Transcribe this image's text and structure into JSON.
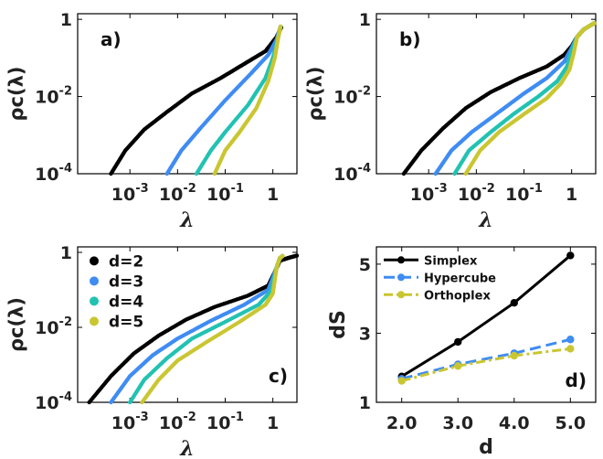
{
  "colors": {
    "d2": "#000000",
    "d3": "#3f8cf2",
    "d4": "#22c2b2",
    "d5": "#c9c632",
    "simplex": "#000000",
    "hypercube": "#3f8cf2",
    "orthoplex": "#c9c632"
  },
  "chart_data": [
    {
      "type": "scatter",
      "panel_label": "a)",
      "xscale": "log",
      "yscale": "log",
      "xlim": [
        8e-05,
        3.2
      ],
      "ylim": [
        0.0001,
        1.4
      ],
      "xticks": [
        {
          "v": 0.001,
          "b": "10",
          "e": "-3"
        },
        {
          "v": 0.01,
          "b": "10",
          "e": "-2"
        },
        {
          "v": 0.1,
          "b": "10",
          "e": "-1"
        },
        {
          "v": 1,
          "b": "1",
          "e": ""
        }
      ],
      "yticks": [
        {
          "v": 0.0001,
          "b": "10",
          "e": "-4"
        },
        {
          "v": 0.01,
          "b": "10",
          "e": "-2"
        },
        {
          "v": 1,
          "b": "1",
          "e": ""
        }
      ],
      "xlabel": "λ",
      "ylabel": "ρc(λ)",
      "series": [
        {
          "color": "#000000",
          "points": [
            [
              0.0004,
              0.0001
            ],
            [
              0.0008,
              0.0004
            ],
            [
              0.002,
              0.0014
            ],
            [
              0.006,
              0.004
            ],
            [
              0.02,
              0.012
            ],
            [
              0.08,
              0.03
            ],
            [
              0.25,
              0.07
            ],
            [
              0.7,
              0.15
            ],
            [
              1.2,
              0.35
            ],
            [
              1.5,
              0.62
            ]
          ]
        },
        {
          "color": "#3f8cf2",
          "points": [
            [
              0.006,
              0.0001
            ],
            [
              0.012,
              0.0004
            ],
            [
              0.03,
              0.0015
            ],
            [
              0.1,
              0.008
            ],
            [
              0.35,
              0.04
            ],
            [
              0.8,
              0.12
            ],
            [
              1.2,
              0.3
            ],
            [
              1.45,
              0.65
            ]
          ]
        },
        {
          "color": "#22c2b2",
          "points": [
            [
              0.025,
              0.0001
            ],
            [
              0.05,
              0.0004
            ],
            [
              0.1,
              0.0012
            ],
            [
              0.3,
              0.006
            ],
            [
              0.7,
              0.03
            ],
            [
              1.0,
              0.1
            ],
            [
              1.3,
              0.35
            ],
            [
              1.45,
              0.65
            ]
          ]
        },
        {
          "color": "#c9c632",
          "points": [
            [
              0.06,
              0.0001
            ],
            [
              0.1,
              0.0004
            ],
            [
              0.2,
              0.0012
            ],
            [
              0.45,
              0.005
            ],
            [
              0.8,
              0.025
            ],
            [
              1.1,
              0.1
            ],
            [
              1.3,
              0.35
            ],
            [
              1.45,
              0.65
            ]
          ]
        }
      ]
    },
    {
      "type": "scatter",
      "panel_label": "b)",
      "xscale": "log",
      "yscale": "log",
      "xlim": [
        8e-05,
        3.2
      ],
      "ylim": [
        0.0001,
        1.4
      ],
      "xticks": [
        {
          "v": 0.001,
          "b": "10",
          "e": "-3"
        },
        {
          "v": 0.01,
          "b": "10",
          "e": "-2"
        },
        {
          "v": 0.1,
          "b": "10",
          "e": "-1"
        },
        {
          "v": 1,
          "b": "1",
          "e": ""
        }
      ],
      "yticks": [
        {
          "v": 0.0001,
          "b": "10",
          "e": "-4"
        },
        {
          "v": 0.01,
          "b": "10",
          "e": "-2"
        },
        {
          "v": 1,
          "b": "1",
          "e": ""
        }
      ],
      "xlabel": "λ",
      "ylabel": "ρc(λ)",
      "series": [
        {
          "color": "#000000",
          "points": [
            [
              0.0003,
              0.0001
            ],
            [
              0.0007,
              0.0004
            ],
            [
              0.002,
              0.0015
            ],
            [
              0.006,
              0.005
            ],
            [
              0.02,
              0.013
            ],
            [
              0.08,
              0.03
            ],
            [
              0.3,
              0.06
            ],
            [
              0.7,
              0.12
            ],
            [
              1.0,
              0.2
            ],
            [
              1.3,
              0.35
            ],
            [
              1.8,
              0.55
            ],
            [
              2.5,
              0.7
            ],
            [
              3.0,
              0.8
            ]
          ]
        },
        {
          "color": "#3f8cf2",
          "points": [
            [
              0.0014,
              0.0001
            ],
            [
              0.003,
              0.0004
            ],
            [
              0.008,
              0.0012
            ],
            [
              0.03,
              0.004
            ],
            [
              0.1,
              0.012
            ],
            [
              0.3,
              0.03
            ],
            [
              0.7,
              0.08
            ],
            [
              1.0,
              0.18
            ],
            [
              1.3,
              0.35
            ],
            [
              1.8,
              0.55
            ],
            [
              2.5,
              0.7
            ],
            [
              3.0,
              0.8
            ]
          ]
        },
        {
          "color": "#22c2b2",
          "points": [
            [
              0.0035,
              0.0001
            ],
            [
              0.007,
              0.0004
            ],
            [
              0.02,
              0.0012
            ],
            [
              0.06,
              0.0035
            ],
            [
              0.2,
              0.01
            ],
            [
              0.5,
              0.025
            ],
            [
              0.8,
              0.06
            ],
            [
              1.0,
              0.15
            ],
            [
              1.3,
              0.35
            ],
            [
              1.8,
              0.55
            ],
            [
              2.5,
              0.7
            ],
            [
              3.0,
              0.8
            ]
          ]
        },
        {
          "color": "#c9c632",
          "points": [
            [
              0.006,
              0.0001
            ],
            [
              0.012,
              0.0004
            ],
            [
              0.03,
              0.0012
            ],
            [
              0.1,
              0.0035
            ],
            [
              0.3,
              0.009
            ],
            [
              0.6,
              0.022
            ],
            [
              0.9,
              0.05
            ],
            [
              1.1,
              0.13
            ],
            [
              1.3,
              0.35
            ],
            [
              1.8,
              0.55
            ],
            [
              2.5,
              0.7
            ],
            [
              3.0,
              0.8
            ]
          ]
        }
      ]
    },
    {
      "type": "scatter",
      "panel_label": "c)",
      "xscale": "log",
      "yscale": "log",
      "xlim": [
        8e-05,
        3.2
      ],
      "ylim": [
        0.0001,
        1.4
      ],
      "xticks": [
        {
          "v": 0.001,
          "b": "10",
          "e": "-3"
        },
        {
          "v": 0.01,
          "b": "10",
          "e": "-2"
        },
        {
          "v": 0.1,
          "b": "10",
          "e": "-1"
        },
        {
          "v": 1,
          "b": "1",
          "e": ""
        }
      ],
      "yticks": [
        {
          "v": 0.0001,
          "b": "10",
          "e": "-4"
        },
        {
          "v": 0.01,
          "b": "10",
          "e": "-2"
        },
        {
          "v": 1,
          "b": "1",
          "e": ""
        }
      ],
      "xlabel": "λ",
      "ylabel": "ρc(λ)",
      "legend": {
        "position": "top-left",
        "entries": [
          {
            "label": "d=2",
            "color": "#000000"
          },
          {
            "label": "d=3",
            "color": "#3f8cf2"
          },
          {
            "label": "d=4",
            "color": "#22c2b2"
          },
          {
            "label": "d=5",
            "color": "#c9c632"
          }
        ]
      },
      "series": [
        {
          "color": "#000000",
          "points": [
            [
              0.00014,
              0.0001
            ],
            [
              0.0004,
              0.0005
            ],
            [
              0.0012,
              0.002
            ],
            [
              0.004,
              0.006
            ],
            [
              0.015,
              0.016
            ],
            [
              0.06,
              0.035
            ],
            [
              0.3,
              0.07
            ],
            [
              0.8,
              0.13
            ],
            [
              1.1,
              0.3
            ],
            [
              1.4,
              0.6
            ],
            [
              2.2,
              0.72
            ],
            [
              3.2,
              0.82
            ]
          ]
        },
        {
          "color": "#3f8cf2",
          "points": [
            [
              0.0004,
              0.0001
            ],
            [
              0.001,
              0.0005
            ],
            [
              0.003,
              0.0018
            ],
            [
              0.01,
              0.005
            ],
            [
              0.05,
              0.015
            ],
            [
              0.25,
              0.04
            ],
            [
              0.8,
              0.1
            ],
            [
              1.2,
              0.4
            ],
            [
              1.4,
              0.7
            ],
            [
              1.6,
              0.8
            ]
          ]
        },
        {
          "color": "#22c2b2",
          "points": [
            [
              0.001,
              0.0001
            ],
            [
              0.002,
              0.0004
            ],
            [
              0.006,
              0.0015
            ],
            [
              0.02,
              0.005
            ],
            [
              0.1,
              0.014
            ],
            [
              0.5,
              0.04
            ],
            [
              0.9,
              0.09
            ],
            [
              1.2,
              0.4
            ],
            [
              1.4,
              0.7
            ],
            [
              1.6,
              0.8
            ]
          ]
        },
        {
          "color": "#c9c632",
          "points": [
            [
              0.0018,
              0.0001
            ],
            [
              0.004,
              0.0004
            ],
            [
              0.01,
              0.0013
            ],
            [
              0.04,
              0.004
            ],
            [
              0.2,
              0.014
            ],
            [
              0.7,
              0.04
            ],
            [
              1.0,
              0.08
            ],
            [
              1.2,
              0.4
            ],
            [
              1.4,
              0.7
            ],
            [
              1.6,
              0.8
            ]
          ]
        }
      ]
    },
    {
      "type": "line",
      "panel_label": "d)",
      "xscale": "linear",
      "yscale": "linear",
      "xlim": [
        1.55,
        5.45
      ],
      "ylim": [
        1,
        5.5
      ],
      "xticks": [
        {
          "v": 2,
          "b": "2.0",
          "e": ""
        },
        {
          "v": 3,
          "b": "3.0",
          "e": ""
        },
        {
          "v": 4,
          "b": "4.0",
          "e": ""
        },
        {
          "v": 5,
          "b": "5.0",
          "e": ""
        }
      ],
      "yticks": [
        {
          "v": 1,
          "b": "1",
          "e": ""
        },
        {
          "v": 3,
          "b": "3",
          "e": ""
        },
        {
          "v": 5,
          "b": "5",
          "e": ""
        }
      ],
      "xlabel": "d",
      "ylabel": "dS",
      "legend": {
        "position": "top-left",
        "entries": [
          {
            "label": "Simplex",
            "color": "#000000"
          },
          {
            "label": "Hypercube",
            "color": "#3f8cf2"
          },
          {
            "label": "Orthoplex",
            "color": "#c9c632"
          }
        ]
      },
      "x": [
        2,
        3,
        4,
        5
      ],
      "series": [
        {
          "name": "Simplex",
          "color": "#000000",
          "dash": "",
          "values": [
            1.75,
            2.75,
            3.88,
            5.25
          ]
        },
        {
          "name": "Hypercube",
          "color": "#3f8cf2",
          "dash": "12,6",
          "values": [
            1.68,
            2.1,
            2.42,
            2.82
          ]
        },
        {
          "name": "Orthoplex",
          "color": "#c9c632",
          "dash": "10,4,3,4",
          "values": [
            1.62,
            2.05,
            2.35,
            2.55
          ]
        }
      ]
    }
  ]
}
